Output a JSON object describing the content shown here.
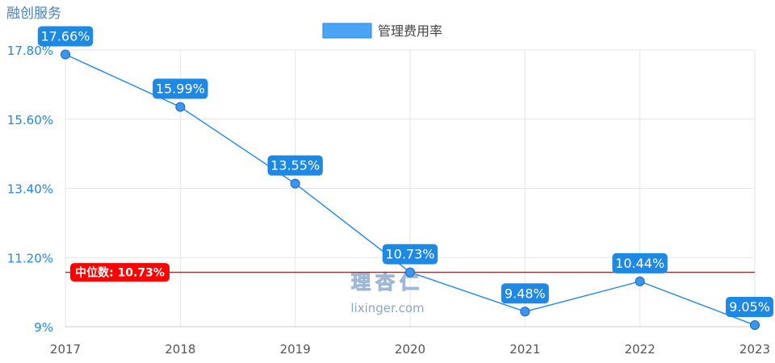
{
  "company": "融创服务",
  "chart_data": {
    "type": "line",
    "title": "",
    "xlabel": "",
    "ylabel": "",
    "categories": [
      "2017",
      "2018",
      "2019",
      "2020",
      "2021",
      "2022",
      "2023"
    ],
    "series": [
      {
        "name": "管理费用率",
        "values": [
          17.66,
          15.99,
          13.55,
          10.73,
          9.48,
          10.44,
          9.05
        ],
        "labels": [
          "17.66%",
          "15.99%",
          "13.55%",
          "10.73%",
          "9.48%",
          "10.44%",
          "9.05%"
        ],
        "color": "#1e88e5"
      }
    ],
    "ylim": [
      9,
      17.8
    ],
    "yticks": [
      9,
      11.2,
      13.4,
      15.6,
      17.8
    ],
    "ytick_labels": [
      "9%",
      "11.20%",
      "13.40%",
      "15.60%",
      "17.80%"
    ],
    "grid": true,
    "legend_position": "top-center",
    "median_line": {
      "value": 10.73,
      "label": "中位数: 10.73%",
      "color": "#ff0000"
    },
    "watermark": {
      "logo_text": "理杏仁",
      "url_text": "lixinger.com"
    }
  }
}
